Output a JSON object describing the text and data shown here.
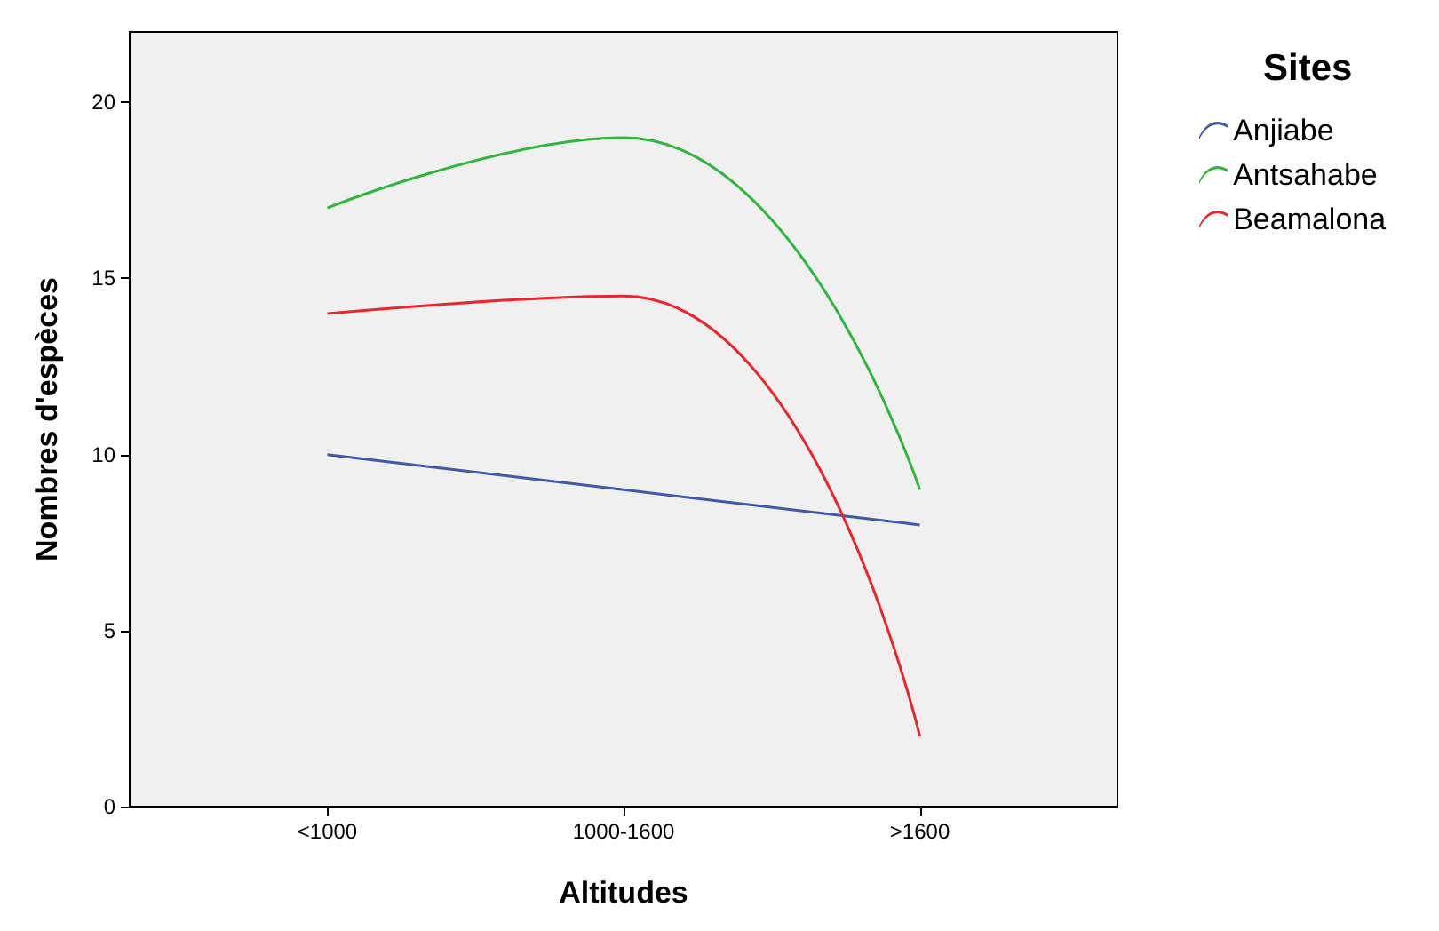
{
  "chart_data": {
    "type": "line",
    "xlabel": "Altitudes",
    "ylabel": "Nombres d'espèces",
    "legend_title": "Sites",
    "legend": "top right",
    "grid": false,
    "marker": "none",
    "line_style": "solid",
    "categories": [
      "<1000",
      "1000-1600",
      ">1600"
    ],
    "ylim": [
      0,
      22
    ],
    "yticks": [
      0,
      5,
      10,
      15,
      20
    ],
    "series": [
      {
        "name": "Anjiabe",
        "color": "#3e58ac",
        "values": [
          10,
          9,
          8
        ]
      },
      {
        "name": "Antsahabe",
        "color": "#2fb63c",
        "values": [
          17,
          19,
          9
        ]
      },
      {
        "name": "Beamalona",
        "color": "#e8262c",
        "values": [
          14,
          14.5,
          2
        ]
      }
    ]
  }
}
